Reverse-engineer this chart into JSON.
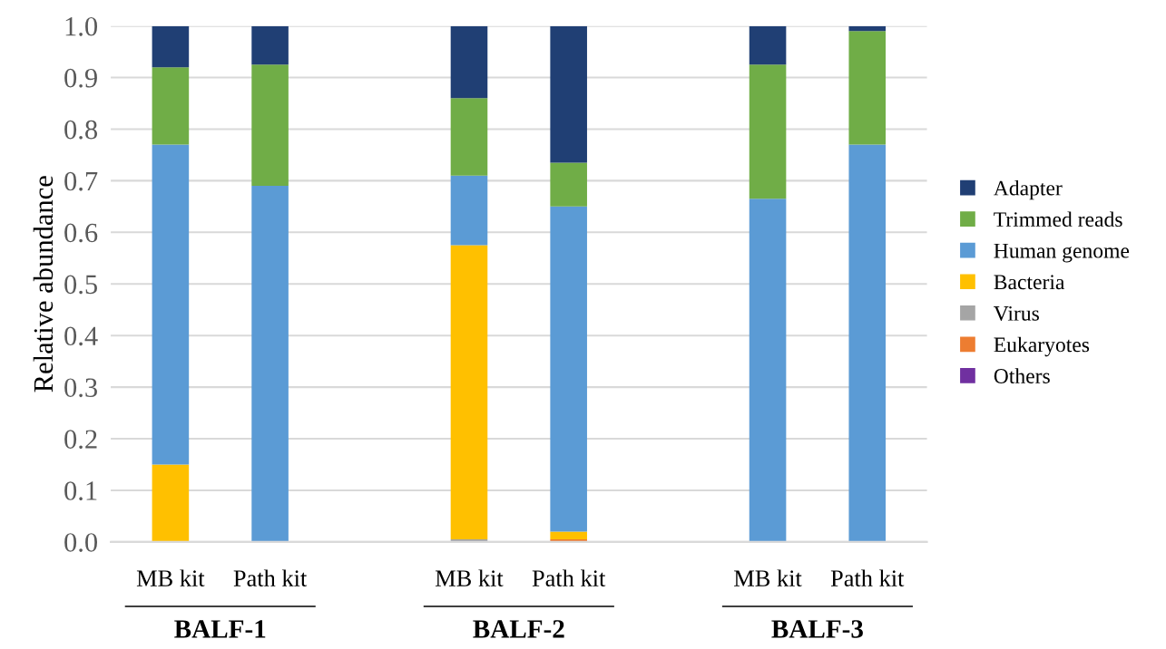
{
  "chart_data": {
    "type": "bar",
    "stacked": true,
    "ylabel": "Relative abundance",
    "categories": [
      "MB kit",
      "Path kit",
      null,
      "MB kit",
      "Path kit",
      null,
      "MB kit",
      "Path kit"
    ],
    "series": [
      {
        "name": "Others",
        "color": "#7030a0",
        "values": [
          0,
          0,
          null,
          0,
          0,
          null,
          0,
          0
        ]
      },
      {
        "name": "Eukaryotes",
        "color": "#ed7d31",
        "values": [
          0,
          0,
          null,
          0,
          0.005,
          null,
          0,
          0
        ]
      },
      {
        "name": "Virus",
        "color": "#a5a5a5",
        "values": [
          0,
          0,
          null,
          0.005,
          0,
          null,
          0,
          0
        ]
      },
      {
        "name": "Bacteria",
        "color": "#ffc000",
        "values": [
          0.15,
          0,
          null,
          0.57,
          0.015,
          null,
          0,
          0
        ]
      },
      {
        "name": "Human genome",
        "color": "#5b9bd5",
        "values": [
          0.62,
          0.69,
          null,
          0.135,
          0.63,
          null,
          0.665,
          0.77
        ]
      },
      {
        "name": "Trimmed reads",
        "color": "#70ad47",
        "values": [
          0.15,
          0.235,
          null,
          0.15,
          0.085,
          null,
          0.26,
          0.22
        ]
      },
      {
        "name": "Adapter",
        "color": "#203f74",
        "values": [
          0.08,
          0.075,
          null,
          0.14,
          0.265,
          null,
          0.075,
          0.01
        ]
      }
    ],
    "ylim": [
      0,
      1
    ],
    "yticks": [
      {
        "value": 0,
        "label": "0.0"
      },
      {
        "value": 0.1,
        "label": "0.1"
      },
      {
        "value": 0.2,
        "label": "0.2"
      },
      {
        "value": 0.3,
        "label": "0.3"
      },
      {
        "value": 0.4,
        "label": "0.4"
      },
      {
        "value": 0.5,
        "label": "0.5"
      },
      {
        "value": 0.6,
        "label": "0.6"
      },
      {
        "value": 0.7,
        "label": "0.7"
      },
      {
        "value": 0.8,
        "label": "0.8"
      },
      {
        "value": 0.9,
        "label": "0.9"
      },
      {
        "value": 1.0,
        "label": "1.0"
      }
    ],
    "grid": "y",
    "legend": "right",
    "annotations": [
      "BALF-1",
      "BALF-2",
      "BALF-3"
    ]
  }
}
